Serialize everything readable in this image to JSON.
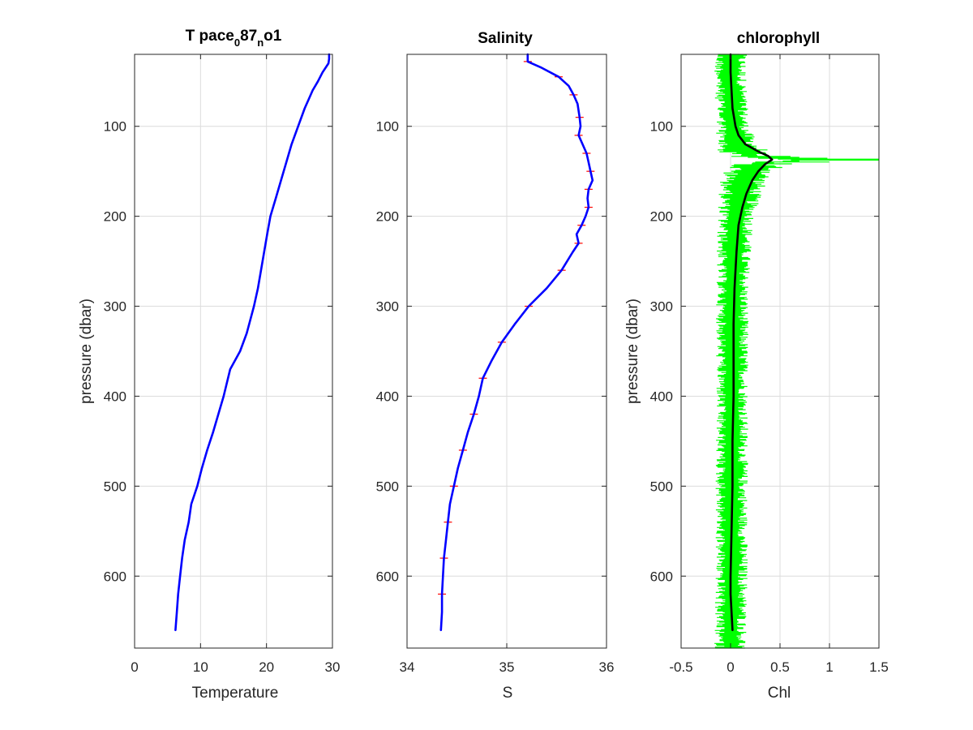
{
  "figure": {
    "background": "#ffffff"
  },
  "chart_data": [
    {
      "type": "line",
      "title": "T pace",
      "title_sub1": "0",
      "title_mid": "87",
      "title_sub2": "n",
      "title_end": "o1",
      "xlabel": "Temperature",
      "ylabel": "pressure (dbar)",
      "xlim": [
        0,
        30
      ],
      "ylim": [
        20,
        680
      ],
      "y_reversed": true,
      "grid": true,
      "xticks": [
        0,
        10,
        20,
        30
      ],
      "yticks": [
        100,
        200,
        300,
        400,
        500,
        600
      ],
      "series": [
        {
          "color": "#0000ff",
          "pressure": [
            20,
            25,
            30,
            40,
            50,
            60,
            70,
            80,
            100,
            120,
            140,
            160,
            180,
            200,
            220,
            250,
            280,
            300,
            330,
            350,
            370,
            400,
            420,
            440,
            460,
            480,
            500,
            520,
            540,
            560,
            580,
            600,
            620,
            640,
            660
          ],
          "value": [
            29.5,
            29.5,
            29.4,
            28.5,
            27.8,
            27.0,
            26.4,
            25.8,
            24.8,
            23.8,
            23.0,
            22.2,
            21.4,
            20.6,
            20.1,
            19.4,
            18.7,
            18.1,
            17.0,
            16.0,
            14.5,
            13.5,
            12.7,
            11.9,
            11.0,
            10.2,
            9.5,
            8.6,
            8.2,
            7.6,
            7.2,
            6.9,
            6.6,
            6.4,
            6.2
          ]
        }
      ]
    },
    {
      "type": "line",
      "title": "Salinity",
      "xlabel": "S",
      "ylabel": "",
      "xlim": [
        34,
        36
      ],
      "ylim": [
        20,
        680
      ],
      "y_reversed": true,
      "grid": true,
      "xticks": [
        34,
        35,
        36
      ],
      "yticks": [
        100,
        200,
        300,
        400,
        500,
        600
      ],
      "series": [
        {
          "color": "#ff0000",
          "pressure": [
            20,
            28,
            35,
            45,
            55,
            65,
            75,
            90,
            100,
            110,
            120,
            130,
            140,
            150,
            160,
            170,
            180,
            190,
            200,
            210,
            220,
            230,
            240,
            260,
            280,
            300,
            320,
            340,
            360,
            380,
            400,
            420,
            440,
            460,
            480,
            500,
            520,
            540,
            560,
            580,
            600,
            620,
            640,
            660
          ],
          "value": [
            35.21,
            35.21,
            35.35,
            35.52,
            35.62,
            35.67,
            35.71,
            35.73,
            35.74,
            35.72,
            35.76,
            35.8,
            35.82,
            35.84,
            35.86,
            35.82,
            35.81,
            35.82,
            35.79,
            35.75,
            35.7,
            35.72,
            35.66,
            35.55,
            35.4,
            35.22,
            35.08,
            34.95,
            34.85,
            34.76,
            34.72,
            34.67,
            34.61,
            34.56,
            34.51,
            34.47,
            34.43,
            34.41,
            34.39,
            34.37,
            34.36,
            34.35,
            34.35,
            34.34
          ]
        },
        {
          "color": "#0000ff",
          "pressure": [
            20,
            28,
            35,
            45,
            55,
            65,
            75,
            90,
            100,
            110,
            120,
            130,
            140,
            150,
            160,
            170,
            180,
            190,
            200,
            210,
            220,
            230,
            240,
            260,
            280,
            300,
            320,
            340,
            360,
            380,
            400,
            420,
            440,
            460,
            480,
            500,
            520,
            540,
            560,
            580,
            600,
            620,
            640,
            660
          ],
          "value": [
            35.21,
            35.21,
            35.35,
            35.52,
            35.62,
            35.67,
            35.71,
            35.73,
            35.74,
            35.72,
            35.76,
            35.8,
            35.82,
            35.84,
            35.86,
            35.82,
            35.81,
            35.82,
            35.79,
            35.75,
            35.7,
            35.72,
            35.66,
            35.55,
            35.4,
            35.22,
            35.08,
            34.95,
            34.85,
            34.76,
            34.72,
            34.67,
            34.61,
            34.56,
            34.51,
            34.47,
            34.43,
            34.41,
            34.39,
            34.37,
            34.36,
            34.35,
            34.35,
            34.34
          ]
        }
      ]
    },
    {
      "type": "line",
      "title": "chlorophyll",
      "xlabel": "Chl",
      "ylabel": "pressure (dbar)",
      "xlim": [
        -0.5,
        1.5
      ],
      "ylim": [
        20,
        680
      ],
      "y_reversed": true,
      "grid": true,
      "xticks": [
        -0.5,
        0,
        0.5,
        1,
        1.5
      ],
      "yticks": [
        100,
        200,
        300,
        400,
        500,
        600
      ],
      "series": [
        {
          "color": "#00ff00",
          "pressure": [
            20,
            50,
            80,
            100,
            110,
            120,
            128,
            133,
            137,
            142,
            150,
            160,
            175,
            190,
            210,
            240,
            280,
            320,
            400,
            500,
            600,
            660,
            680
          ],
          "value": [
            0.0,
            0.0,
            0.02,
            0.05,
            0.07,
            0.12,
            0.25,
            0.5,
            1.5,
            0.6,
            0.35,
            0.25,
            0.18,
            0.13,
            0.09,
            0.06,
            0.04,
            0.03,
            0.03,
            0.02,
            0.02,
            0.0,
            0.0
          ],
          "spread": [
            0.15,
            0.15,
            0.15,
            0.15,
            0.18,
            0.2,
            0.25,
            0.3,
            0.35,
            0.3,
            0.25,
            0.22,
            0.2,
            0.18,
            0.17,
            0.16,
            0.15,
            0.15,
            0.15,
            0.15,
            0.15,
            0.15,
            0.15
          ]
        },
        {
          "color": "#000000",
          "pressure": [
            20,
            40,
            60,
            80,
            100,
            110,
            120,
            128,
            133,
            137,
            142,
            150,
            160,
            175,
            190,
            210,
            240,
            280,
            320,
            360,
            400,
            450,
            500,
            550,
            600,
            620,
            640,
            660
          ],
          "value": [
            0.0,
            0.0,
            0.01,
            0.02,
            0.05,
            0.08,
            0.15,
            0.28,
            0.38,
            0.42,
            0.35,
            0.28,
            0.22,
            0.16,
            0.12,
            0.08,
            0.06,
            0.04,
            0.03,
            0.03,
            0.03,
            0.02,
            0.02,
            0.01,
            0.0,
            0.0,
            0.01,
            0.02
          ]
        }
      ]
    }
  ]
}
